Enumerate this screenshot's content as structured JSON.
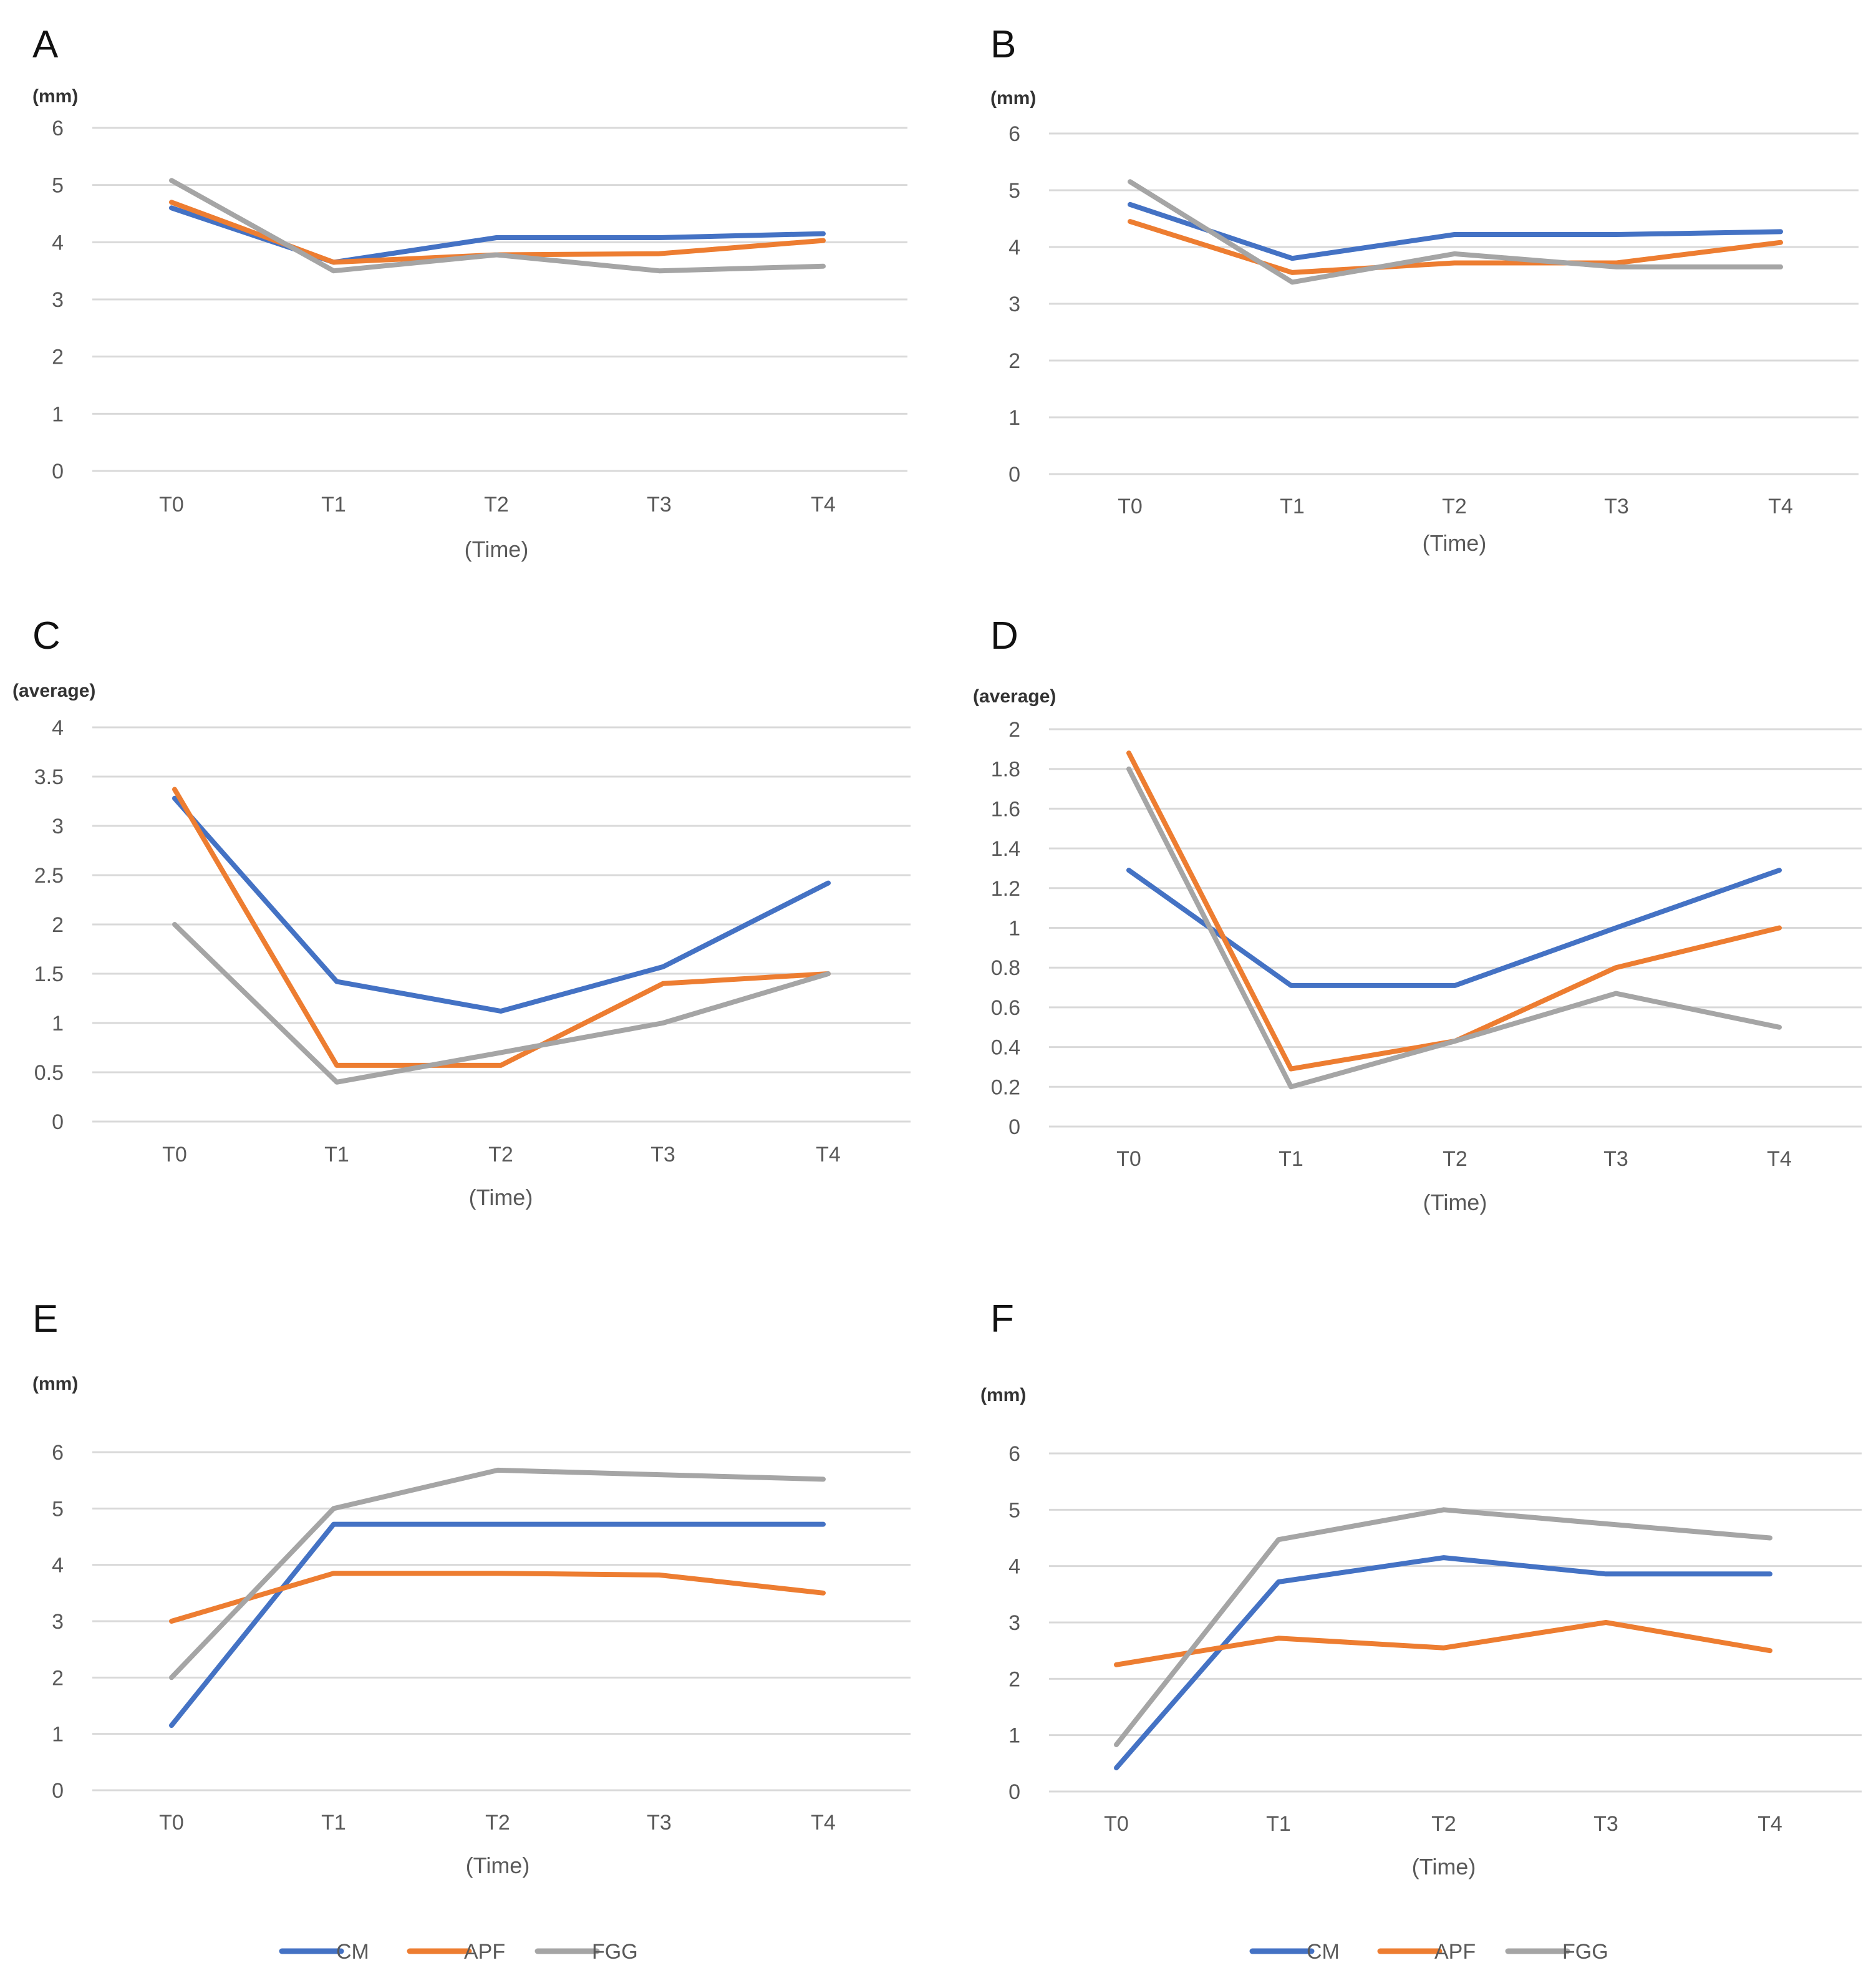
{
  "colors": {
    "CM": "#4472c4",
    "APF": "#ed7d31",
    "FGG": "#a5a5a5"
  },
  "legend": [
    "CM",
    "APF",
    "FGG"
  ],
  "chart_data": [
    {
      "panel": "A",
      "type": "line",
      "ylabel": "(mm)",
      "xlabel": "(Time)",
      "categories": [
        "T0",
        "T1",
        "T2",
        "T3",
        "T4"
      ],
      "ylim": [
        0,
        6
      ],
      "yticks": [
        "0",
        "1",
        "2",
        "3",
        "4",
        "5",
        "6"
      ],
      "series": [
        {
          "name": "CM",
          "values": [
            4.6,
            3.65,
            4.08,
            4.08,
            4.15
          ]
        },
        {
          "name": "APF",
          "values": [
            4.7,
            3.65,
            3.78,
            3.8,
            4.03
          ]
        },
        {
          "name": "FGG",
          "values": [
            5.08,
            3.5,
            3.78,
            3.5,
            3.58
          ]
        }
      ]
    },
    {
      "panel": "B",
      "type": "line",
      "ylabel": "(mm)",
      "xlabel": "(Time)",
      "categories": [
        "T0",
        "T1",
        "T2",
        "T3",
        "T4"
      ],
      "ylim": [
        0,
        6
      ],
      "yticks": [
        "0",
        "1",
        "2",
        "3",
        "4",
        "5",
        "6"
      ],
      "series": [
        {
          "name": "CM",
          "values": [
            4.75,
            3.8,
            4.22,
            4.22,
            4.27
          ]
        },
        {
          "name": "APF",
          "values": [
            4.45,
            3.55,
            3.72,
            3.72,
            4.08
          ]
        },
        {
          "name": "FGG",
          "values": [
            5.15,
            3.38,
            3.88,
            3.65,
            3.65
          ]
        }
      ]
    },
    {
      "panel": "C",
      "type": "line",
      "ylabel": "(average)",
      "xlabel": "(Time)",
      "categories": [
        "T0",
        "T1",
        "T2",
        "T3",
        "T4"
      ],
      "ylim": [
        0,
        4
      ],
      "yticks": [
        "0",
        "0.5",
        "1",
        "1.5",
        "2",
        "2.5",
        "3",
        "3.5",
        "4"
      ],
      "series": [
        {
          "name": "CM",
          "values": [
            3.28,
            1.42,
            1.12,
            1.57,
            2.42
          ]
        },
        {
          "name": "APF",
          "values": [
            3.37,
            0.57,
            0.57,
            1.4,
            1.5
          ]
        },
        {
          "name": "FGG",
          "values": [
            2.0,
            0.4,
            0.7,
            1.0,
            1.5
          ]
        }
      ]
    },
    {
      "panel": "D",
      "type": "line",
      "ylabel": "(average)",
      "xlabel": "(Time)",
      "categories": [
        "T0",
        "T1",
        "T2",
        "T3",
        "T4"
      ],
      "ylim": [
        0,
        2
      ],
      "yticks": [
        "0",
        "0.2",
        "0.4",
        "0.6",
        "0.8",
        "1",
        "1.2",
        "1.4",
        "1.6",
        "1.8",
        "2"
      ],
      "series": [
        {
          "name": "CM",
          "values": [
            1.29,
            0.71,
            0.71,
            1.0,
            1.29
          ]
        },
        {
          "name": "APF",
          "values": [
            1.88,
            0.29,
            0.43,
            0.8,
            1.0
          ]
        },
        {
          "name": "FGG",
          "values": [
            1.8,
            0.2,
            0.43,
            0.67,
            0.5
          ]
        }
      ]
    },
    {
      "panel": "E",
      "type": "line",
      "ylabel": "(mm)",
      "xlabel": "(Time)",
      "categories": [
        "T0",
        "T1",
        "T2",
        "T3",
        "T4"
      ],
      "ylim": [
        0,
        6
      ],
      "yticks": [
        "0",
        "1",
        "2",
        "3",
        "4",
        "5",
        "6"
      ],
      "series": [
        {
          "name": "CM",
          "values": [
            1.15,
            4.72,
            4.72,
            4.72,
            4.72
          ]
        },
        {
          "name": "APF",
          "values": [
            3.0,
            3.85,
            3.85,
            3.82,
            3.5
          ]
        },
        {
          "name": "FGG",
          "values": [
            2.0,
            5.0,
            5.68,
            5.6,
            5.52
          ]
        }
      ]
    },
    {
      "panel": "F",
      "type": "line",
      "ylabel": "(mm)",
      "xlabel": "(Time)",
      "categories": [
        "T0",
        "T1",
        "T2",
        "T3",
        "T4"
      ],
      "ylim": [
        0,
        6
      ],
      "yticks": [
        "0",
        "1",
        "2",
        "3",
        "4",
        "5",
        "6"
      ],
      "series": [
        {
          "name": "CM",
          "values": [
            0.42,
            3.72,
            4.15,
            3.86,
            3.86
          ]
        },
        {
          "name": "APF",
          "values": [
            2.25,
            2.72,
            2.55,
            3.0,
            2.5
          ]
        },
        {
          "name": "FGG",
          "values": [
            0.83,
            4.47,
            5.0,
            4.75,
            4.5
          ]
        }
      ]
    }
  ]
}
